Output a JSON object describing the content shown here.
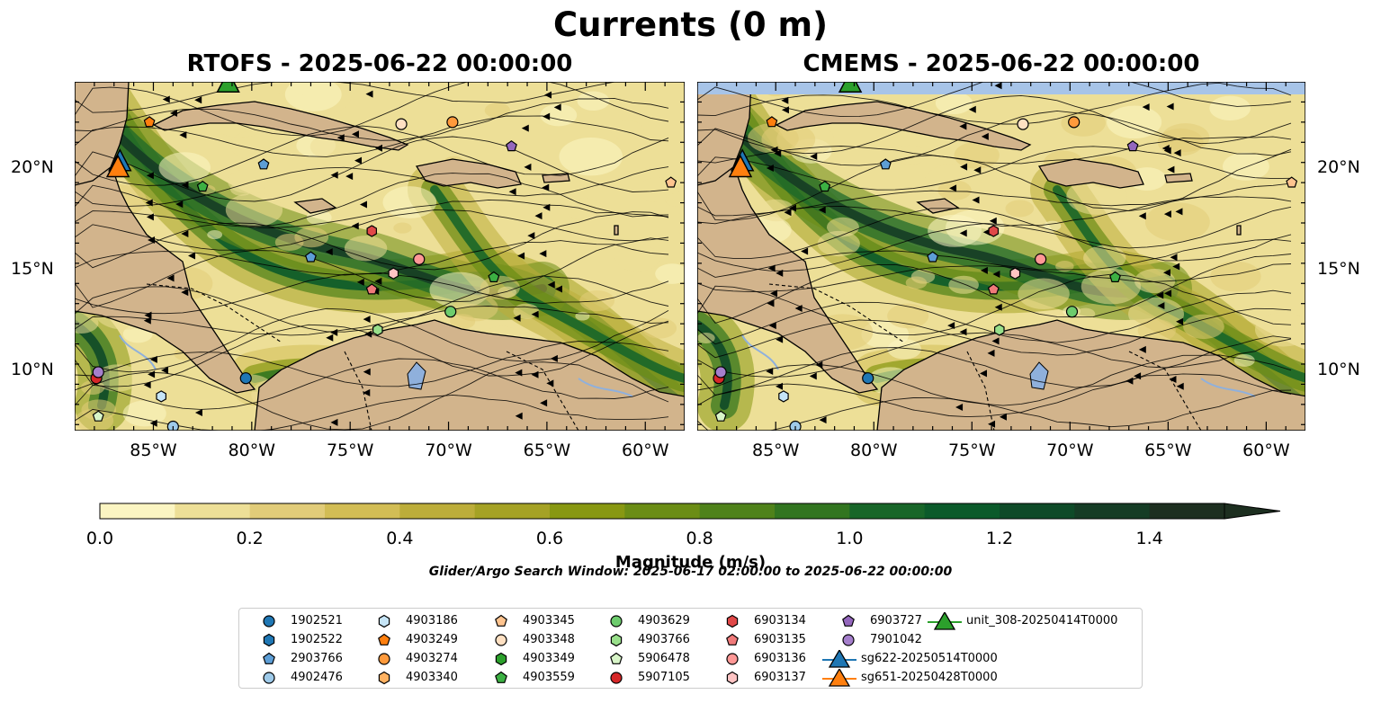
{
  "figure": {
    "title": "Currents (0 m)",
    "panels": [
      {
        "title": "RTOFS - 2025-06-22 00:00:00"
      },
      {
        "title": "CMEMS - 2025-06-22 00:00:00"
      }
    ],
    "lon_ticks": [
      "85°W",
      "80°W",
      "75°W",
      "70°W",
      "65°W",
      "60°W"
    ],
    "lat_ticks": [
      "20°N",
      "15°N",
      "10°N"
    ],
    "colorbar": {
      "label": "Magnitude (m/s)",
      "ticks": [
        "0.0",
        "0.2",
        "0.4",
        "0.6",
        "0.8",
        "1.0",
        "1.2",
        "1.4"
      ],
      "min": 0.0,
      "max": 1.5,
      "step": 0.1,
      "extend": "max",
      "colors": [
        "#fbf5c2",
        "#eddf97",
        "#e1cc79",
        "#d2bd55",
        "#bcad3a",
        "#a5a225",
        "#889812",
        "#6b8d15",
        "#4f821a",
        "#327520",
        "#186629",
        "#0b5a2a",
        "#0e4a28",
        "#153c25",
        "#1d2f20"
      ]
    },
    "search_window": "Glider/Argo Search Window: 2025-06-17 02:00:00 to 2025-06-22 00:00:00",
    "colors": {
      "land": "#d2b48c",
      "water_lake": "#8fb0dc",
      "nodata": "#a7c4e8"
    },
    "legend": [
      {
        "label": "1902521",
        "marker": "circle",
        "color": "#1f77b4"
      },
      {
        "label": "1902522",
        "marker": "hexagon",
        "color": "#1f77b4"
      },
      {
        "label": "2903766",
        "marker": "pentagon",
        "color": "#5d9ed6"
      },
      {
        "label": "4902476",
        "marker": "circle",
        "color": "#9ecae9"
      },
      {
        "label": "4903186",
        "marker": "hexagon",
        "color": "#c6e5f7"
      },
      {
        "label": "4903249",
        "marker": "pentagon",
        "color": "#ff7f0e"
      },
      {
        "label": "4903274",
        "marker": "circle",
        "color": "#ff9a3c"
      },
      {
        "label": "4903340",
        "marker": "hexagon",
        "color": "#ffb262"
      },
      {
        "label": "4903345",
        "marker": "pentagon",
        "color": "#ffc48f"
      },
      {
        "label": "4903348",
        "marker": "circle",
        "color": "#ffe0c2"
      },
      {
        "label": "4903349",
        "marker": "hexagon",
        "color": "#2ca02c"
      },
      {
        "label": "4903559",
        "marker": "pentagon",
        "color": "#3cb043"
      },
      {
        "label": "4903629",
        "marker": "circle",
        "color": "#6dcc6d"
      },
      {
        "label": "4903766",
        "marker": "hexagon",
        "color": "#98df8a"
      },
      {
        "label": "5906478",
        "marker": "pentagon",
        "color": "#d8f5c8"
      },
      {
        "label": "5907105",
        "marker": "circle",
        "color": "#d62728"
      },
      {
        "label": "6903134",
        "marker": "hexagon",
        "color": "#e04848"
      },
      {
        "label": "6903135",
        "marker": "pentagon",
        "color": "#f07a7a"
      },
      {
        "label": "6903136",
        "marker": "circle",
        "color": "#ff9896"
      },
      {
        "label": "6903137",
        "marker": "hexagon",
        "color": "#ffc4c4"
      },
      {
        "label": "6903727",
        "marker": "pentagon",
        "color": "#9467bd"
      },
      {
        "label": "7901042",
        "marker": "circle",
        "color": "#a57fcc"
      },
      {
        "label": "sg622-20250514T0000",
        "marker": "triangle",
        "color": "#1f77b4"
      },
      {
        "label": "sg651-20250428T0000",
        "marker": "triangle",
        "color": "#ff7f0e"
      },
      {
        "label": "unit_308-20250414T0000",
        "marker": "triangle",
        "color": "#2ca02c"
      }
    ],
    "floats": [
      {
        "id": "1902521",
        "lon": -80.3,
        "lat": 9.6
      },
      {
        "id": "4902476",
        "lon": -84.0,
        "lat": 7.2
      },
      {
        "id": "2903766",
        "lon": -77.0,
        "lat": 15.6
      },
      {
        "id": "4903186",
        "lon": -84.6,
        "lat": 8.7
      },
      {
        "id": "4903249",
        "lon": -85.2,
        "lat": 22.3
      },
      {
        "id": "4903274",
        "lon": -69.8,
        "lat": 22.3
      },
      {
        "id": "4903345",
        "lon": -58.7,
        "lat": 19.3
      },
      {
        "id": "4903348",
        "lon": -72.4,
        "lat": 22.2
      },
      {
        "id": "4903559",
        "lon": -67.7,
        "lat": 14.6
      },
      {
        "id": "4903559b",
        "lon": -82.5,
        "lat": 19.1
      },
      {
        "id": "4903629",
        "lon": -69.9,
        "lat": 12.9
      },
      {
        "id": "4903766",
        "lon": -73.6,
        "lat": 12.0
      },
      {
        "id": "5906478",
        "lon": -87.8,
        "lat": 7.7
      },
      {
        "id": "5907105",
        "lon": -87.9,
        "lat": 9.6
      },
      {
        "id": "6903134",
        "lon": -73.9,
        "lat": 16.9
      },
      {
        "id": "6903135",
        "lon": -73.9,
        "lat": 14.0
      },
      {
        "id": "6903136",
        "lon": -71.5,
        "lat": 15.5
      },
      {
        "id": "6903137",
        "lon": -72.8,
        "lat": 14.8
      },
      {
        "id": "6903727",
        "lon": -66.8,
        "lat": 21.1
      },
      {
        "id": "7901042",
        "lon": -87.8,
        "lat": 9.9
      },
      {
        "id": "2903766b",
        "lon": -79.4,
        "lat": 20.2
      }
    ],
    "gliders": [
      {
        "id": "sg622-20250514T0000",
        "lon": -86.7,
        "lat": 20.3
      },
      {
        "id": "sg651-20250428T0000",
        "lon": -86.8,
        "lat": 20.0
      },
      {
        "id": "unit_308-20250414T0000",
        "lon": -81.2,
        "lat": 24.2
      }
    ]
  }
}
